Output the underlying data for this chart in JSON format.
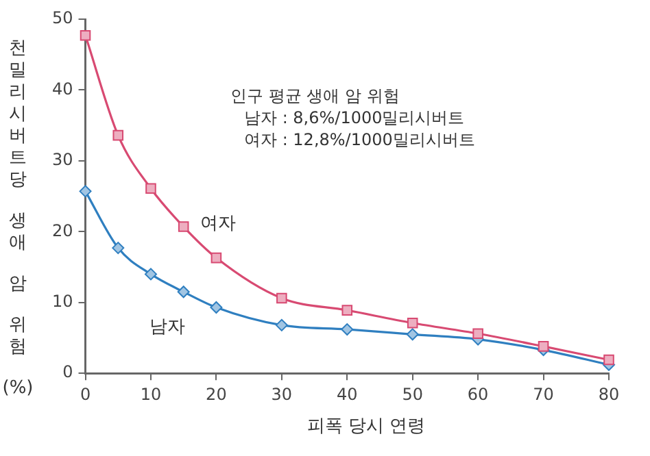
{
  "chart_data": {
    "type": "line",
    "xlabel": "피폭 당시 연령",
    "ylabel": "천밀리시버트당 생애 암 위험 (%)",
    "x": [
      0,
      5,
      10,
      15,
      20,
      30,
      40,
      50,
      60,
      70,
      80
    ],
    "series": [
      {
        "name": "여자",
        "color": "#d84a72",
        "values": [
          47.7,
          33.6,
          26.1,
          20.7,
          16.3,
          10.6,
          8.9,
          7.1,
          5.6,
          3.8,
          1.9
        ],
        "marker": "square"
      },
      {
        "name": "남자",
        "color": "#2f7fc0",
        "values": [
          25.7,
          17.7,
          14.0,
          11.5,
          9.3,
          6.8,
          6.2,
          5.5,
          4.8,
          3.3,
          1.2
        ],
        "marker": "diamond"
      }
    ],
    "xlim": [
      0,
      80
    ],
    "xticks": [
      0,
      10,
      20,
      30,
      40,
      50,
      60,
      70,
      80
    ],
    "ylim": [
      0,
      50
    ],
    "yticks": [
      0,
      10,
      20,
      30,
      40,
      50
    ],
    "grid": false,
    "legend": false,
    "annotations": [
      "인구 평균 생애 암 위험",
      "남자 : 8,6%/1000밀리시버트",
      "여자 : 12,8%/1000밀리시버트"
    ]
  }
}
